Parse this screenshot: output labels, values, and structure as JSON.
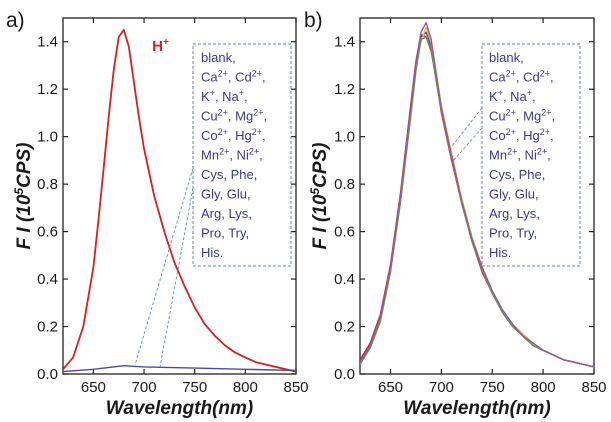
{
  "chart_data": [
    {
      "panel_label": "a)",
      "type": "line",
      "xlabel": "Wavelength(nm)",
      "ylabel_parts": [
        "F I (10",
        "5",
        "CPS)"
      ],
      "xlim": [
        620,
        850
      ],
      "ylim": [
        0,
        1.5
      ],
      "xticks": [
        650,
        700,
        750,
        800,
        850
      ],
      "yticks": [
        0.0,
        0.2,
        0.4,
        0.6,
        0.8,
        1.0,
        1.2,
        1.4
      ],
      "grid": false,
      "annotation": "H",
      "annotation_sup": "+",
      "annotation_color": "#d62020",
      "legend_lines": [
        "blank,",
        "Ca|2+|, Cd|2+|,",
        "K|+|, Na|+|,",
        "Cu|2+|, Mg|2+|,",
        "Co|2+|, Hg|2+|,",
        "Mn|2+|, Ni|2+|,",
        "Cys, Phe,",
        "Gly, Glu,",
        "Arg, Lys,",
        "Pro, Try,",
        "His."
      ],
      "series": [
        {
          "color": "#d62020",
          "x": [
            620,
            630,
            640,
            650,
            655,
            660,
            665,
            670,
            675,
            680,
            685,
            690,
            695,
            700,
            710,
            720,
            730,
            740,
            750,
            760,
            770,
            780,
            790,
            800,
            810,
            820,
            830,
            840,
            850
          ],
          "y": [
            0.02,
            0.07,
            0.2,
            0.45,
            0.65,
            0.86,
            1.08,
            1.28,
            1.42,
            1.45,
            1.38,
            1.23,
            1.08,
            0.95,
            0.75,
            0.6,
            0.47,
            0.37,
            0.28,
            0.21,
            0.16,
            0.12,
            0.09,
            0.07,
            0.05,
            0.04,
            0.03,
            0.02,
            0.01
          ]
        },
        {
          "color": "#4a4aa0",
          "x": [
            620,
            650,
            680,
            700,
            750,
            800,
            850
          ],
          "y": [
            0.01,
            0.02,
            0.035,
            0.03,
            0.025,
            0.02,
            0.015
          ]
        }
      ]
    },
    {
      "panel_label": "b)",
      "type": "line",
      "xlabel": "Wavelength(nm)",
      "ylabel_parts": [
        "F I (10",
        "5",
        "CPS)"
      ],
      "xlim": [
        620,
        850
      ],
      "ylim": [
        0,
        1.5
      ],
      "xticks": [
        650,
        700,
        750,
        800,
        850
      ],
      "yticks": [
        0.0,
        0.2,
        0.4,
        0.6,
        0.8,
        1.0,
        1.2,
        1.4
      ],
      "grid": false,
      "legend_lines": [
        "blank,",
        "Ca|2+|, Cd|2+|,",
        "K|+|, Na|+|,",
        "Cu|2+|, Mg|2+|,",
        "Co|2+|, Hg|2+|,",
        "Mn|2+|, Ni|2+|,",
        "Cys, Phe,",
        "Gly, Glu,",
        "Arg, Lys,",
        "Pro, Try,",
        "His."
      ],
      "series": [
        {
          "color": "#4a4aa0",
          "x": [
            620,
            630,
            640,
            650,
            660,
            670,
            675,
            680,
            685,
            690,
            695,
            700,
            710,
            720,
            730,
            740,
            750,
            760,
            770,
            780,
            790,
            800,
            810,
            820,
            830,
            840,
            850
          ],
          "y": [
            0.05,
            0.12,
            0.24,
            0.45,
            0.75,
            1.12,
            1.3,
            1.42,
            1.44,
            1.38,
            1.25,
            1.12,
            0.92,
            0.73,
            0.57,
            0.44,
            0.34,
            0.27,
            0.21,
            0.16,
            0.13,
            0.1,
            0.08,
            0.06,
            0.05,
            0.04,
            0.03
          ]
        },
        {
          "color": "#d62020",
          "x": [
            620,
            630,
            640,
            650,
            660,
            670,
            675,
            680,
            685,
            690,
            695,
            700,
            710,
            720,
            730,
            740,
            750,
            760,
            770,
            780,
            790,
            800,
            810,
            820,
            830,
            840,
            850
          ],
          "y": [
            0.06,
            0.13,
            0.25,
            0.46,
            0.77,
            1.14,
            1.32,
            1.43,
            1.42,
            1.36,
            1.24,
            1.1,
            0.9,
            0.72,
            0.56,
            0.43,
            0.34,
            0.26,
            0.2,
            0.16,
            0.12,
            0.1,
            0.08,
            0.06,
            0.05,
            0.04,
            0.03
          ]
        },
        {
          "color": "#d8c040",
          "x": [
            620,
            630,
            640,
            650,
            660,
            670,
            675,
            680,
            685,
            690,
            695,
            700,
            710,
            720,
            730,
            740,
            750,
            760,
            770,
            780,
            790,
            800,
            810,
            820,
            830,
            840,
            850
          ],
          "y": [
            0.05,
            0.11,
            0.23,
            0.44,
            0.74,
            1.1,
            1.29,
            1.4,
            1.46,
            1.4,
            1.27,
            1.13,
            0.93,
            0.74,
            0.58,
            0.45,
            0.35,
            0.27,
            0.21,
            0.17,
            0.13,
            0.1,
            0.08,
            0.06,
            0.05,
            0.04,
            0.03
          ]
        },
        {
          "color": "#5a9a5a",
          "x": [
            620,
            630,
            640,
            650,
            660,
            670,
            675,
            680,
            685,
            690,
            695,
            700,
            710,
            720,
            730,
            740,
            750,
            760,
            770,
            780,
            790,
            800,
            810,
            820,
            830,
            840,
            850
          ],
          "y": [
            0.04,
            0.11,
            0.22,
            0.43,
            0.73,
            1.09,
            1.28,
            1.41,
            1.42,
            1.37,
            1.23,
            1.11,
            0.91,
            0.72,
            0.56,
            0.44,
            0.34,
            0.26,
            0.2,
            0.16,
            0.12,
            0.1,
            0.08,
            0.06,
            0.05,
            0.04,
            0.03
          ]
        },
        {
          "color": "#a050a0",
          "x": [
            620,
            630,
            640,
            650,
            660,
            670,
            675,
            680,
            685,
            690,
            695,
            700,
            710,
            720,
            730,
            740,
            750,
            760,
            770,
            780,
            790,
            800,
            810,
            820,
            830,
            840,
            850
          ],
          "y": [
            0.05,
            0.12,
            0.24,
            0.45,
            0.76,
            1.13,
            1.31,
            1.44,
            1.48,
            1.41,
            1.26,
            1.12,
            0.92,
            0.73,
            0.57,
            0.45,
            0.35,
            0.27,
            0.21,
            0.16,
            0.13,
            0.1,
            0.08,
            0.06,
            0.05,
            0.04,
            0.03
          ]
        }
      ]
    }
  ]
}
